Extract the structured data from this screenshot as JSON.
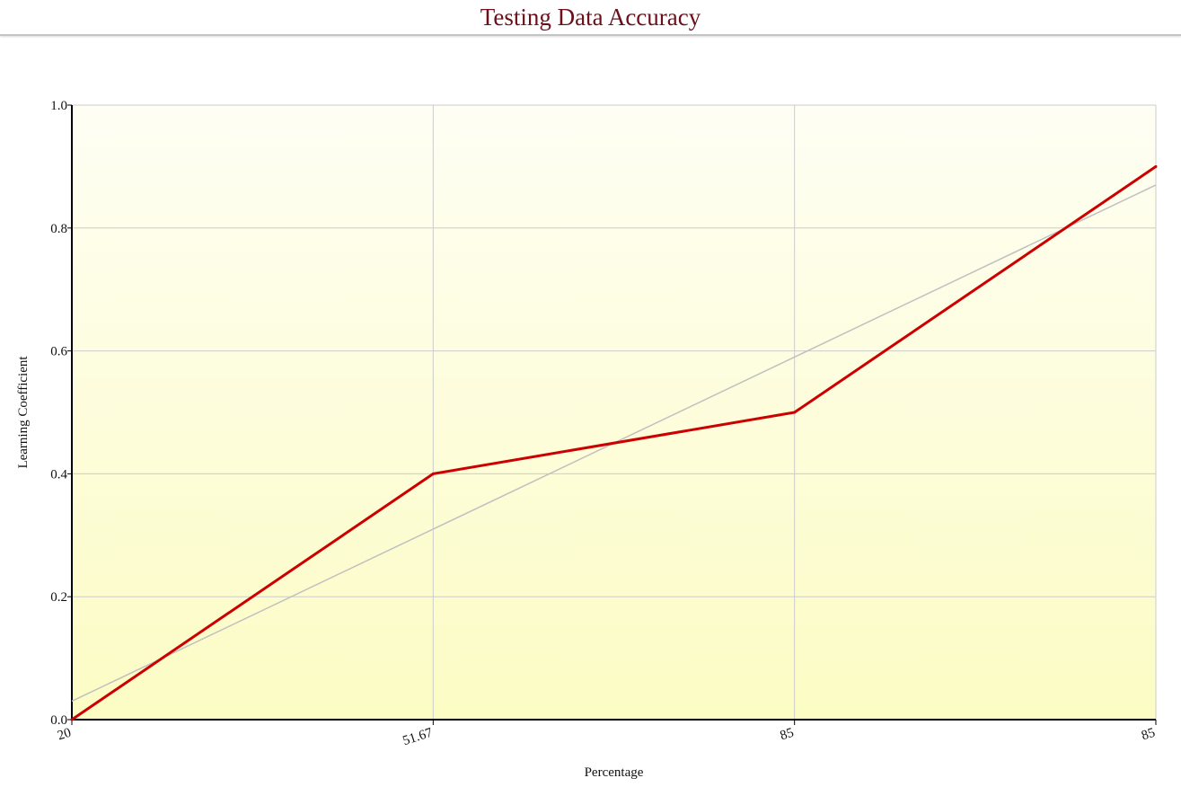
{
  "chart_data": {
    "type": "line",
    "title": "Testing Data Accuracy",
    "xlabel": "Percentage",
    "ylabel": "Learning Coefficient",
    "categories": [
      "20",
      "51.67",
      "85",
      "85"
    ],
    "series": [
      {
        "values": [
          0.0,
          0.4,
          0.5,
          0.9
        ],
        "color": "#cc0000"
      }
    ],
    "trendline": {
      "values": [
        0.03,
        0.31,
        0.59,
        0.87
      ],
      "color": "#c0c0c0"
    },
    "ylim": [
      0,
      1.0
    ],
    "yticks": [
      "0.0",
      "0.2",
      "0.4",
      "0.6",
      "0.8",
      "1.0"
    ],
    "grid": true,
    "background_gradient": [
      "#fefef4",
      "#fcfcc4"
    ]
  }
}
